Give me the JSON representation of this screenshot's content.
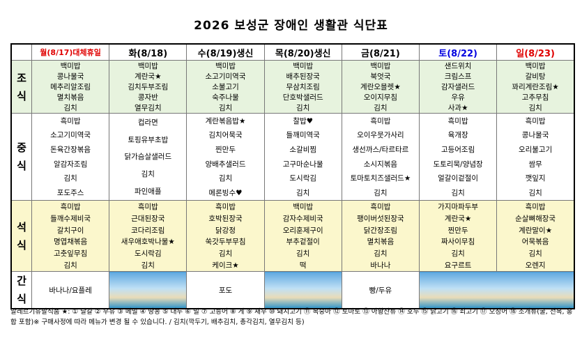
{
  "title": "2026 보성군 장애인 생활관 식단표",
  "days": [
    {
      "label": "월(8/17)대체휴일",
      "color": "#e00000"
    },
    {
      "label": "화(8/18)",
      "color": "#000000"
    },
    {
      "label": "수(8/19)생신",
      "color": "#000000"
    },
    {
      "label": "목(8/20)생신",
      "color": "#000000"
    },
    {
      "label": "금(8/21)",
      "color": "#000000"
    },
    {
      "label": "토(8/22)",
      "color": "#0000e0"
    },
    {
      "label": "일(8/23)",
      "color": "#e00000"
    }
  ],
  "meals": [
    {
      "label": "조식",
      "items": [
        [
          "백미밥",
          "콩나물국",
          "메추리알조림",
          "멸치볶음",
          "김치"
        ],
        [
          "백미밥",
          "계란국★",
          "김치두부조림",
          "콩자반",
          "열무김치"
        ],
        [
          "백미밥",
          "소고기미역국",
          "소불고기",
          "숙주나물",
          "김치"
        ],
        [
          "백미밥",
          "배추된장국",
          "무삼치조림",
          "단호박샐러드",
          "김치"
        ],
        [
          "백미밥",
          "북엇국",
          "계란오믈렛★",
          "오이지무침",
          "김치"
        ],
        [
          "샌드위치",
          "크림스프",
          "감자샐러드",
          "우유",
          "사과★"
        ],
        [
          "백미밥",
          "갈비탕",
          "꽈리계란조림★",
          "고추무침",
          "김치"
        ]
      ]
    },
    {
      "label": "중식",
      "items": [
        [
          "흑미밥",
          "소고기미역국",
          "돈육간장볶음",
          "알감자조림",
          "김치",
          "포도주스"
        ],
        [
          "컵라면",
          "토핑유부초밥",
          "닭가슴살샐러드",
          "김치",
          "파인애플"
        ],
        [
          "계란볶음밥★",
          "김치어묵국",
          "찐만두",
          "양배추샐러드",
          "김치",
          "메론빙수♥"
        ],
        [
          "찰밥♥",
          "들깨미역국",
          "소갈비찜",
          "고구마순나물",
          "도시락김",
          "김치"
        ],
        [
          "흑미밥",
          "오이우뭇가사리",
          "생선까스/타르타르",
          "소시지볶음",
          "토마토치즈샐러드★",
          "김치"
        ],
        [
          "흑미밥",
          "육개장",
          "고등어조림",
          "도토리묵/양념장",
          "얼갈이겉절이",
          "김치"
        ],
        [
          "흑미밥",
          "콩나물국",
          "오리불고기",
          "쌈무",
          "깻잎지",
          "김치"
        ]
      ]
    },
    {
      "label": "석식",
      "items": [
        [
          "흑미밥",
          "들깨수제비국",
          "갈치구이",
          "명엽채볶음",
          "고춧잎무침",
          "김치"
        ],
        [
          "흑미밥",
          "근대된장국",
          "코다리조림",
          "새우애호박나물★",
          "도시락김",
          "김치"
        ],
        [
          "흑미밥",
          "호박된장국",
          "닭강정",
          "쑥갓두부무침",
          "김치",
          "케이크★"
        ],
        [
          "백미밥",
          "감자수제비국",
          "오리훈제구이",
          "부추겉절이",
          "김치",
          "떡"
        ],
        [
          "흑미밥",
          "팽이버섯된장국",
          "닭간장조림",
          "멸치볶음",
          "김치",
          "바나나"
        ],
        [
          "가지마파두부",
          "계란국★",
          "찐만두",
          "짜사이무침",
          "김치",
          "요구르트"
        ],
        [
          "흑미밥",
          "순살뼈해장국",
          "계란말이★",
          "어묵볶음",
          "김치",
          "오렌지"
        ]
      ]
    }
  ],
  "snack": {
    "label": "간식",
    "items": [
      "바나나/요플레",
      "포도",
      "빵/두유"
    ]
  },
  "footnote": "알레르기유발식품 ★: ① 달걀 ② 우유 ③ 메밀 ④ 땅콩 ⑤ 대두 ⑥ 밀 ⑦ 고등어 ⑧ 게 ⑨ 새우 ⑩ 돼지고기 ⑪ 복숭아 ⑫ 토마토 ⑬ 아황산류 ⑭ 호두 ⑮ 닭고기 ⑯ 쇠고기 ⑰ 오징어 ⑱ 조개류(굴, 전복, 홍합 포함)※ 구매사정에 따라 메뉴가 변경 될 수 있습니다.  / 김치(깍두기, 배추김치, 총각김치, 열무김치 등)"
}
